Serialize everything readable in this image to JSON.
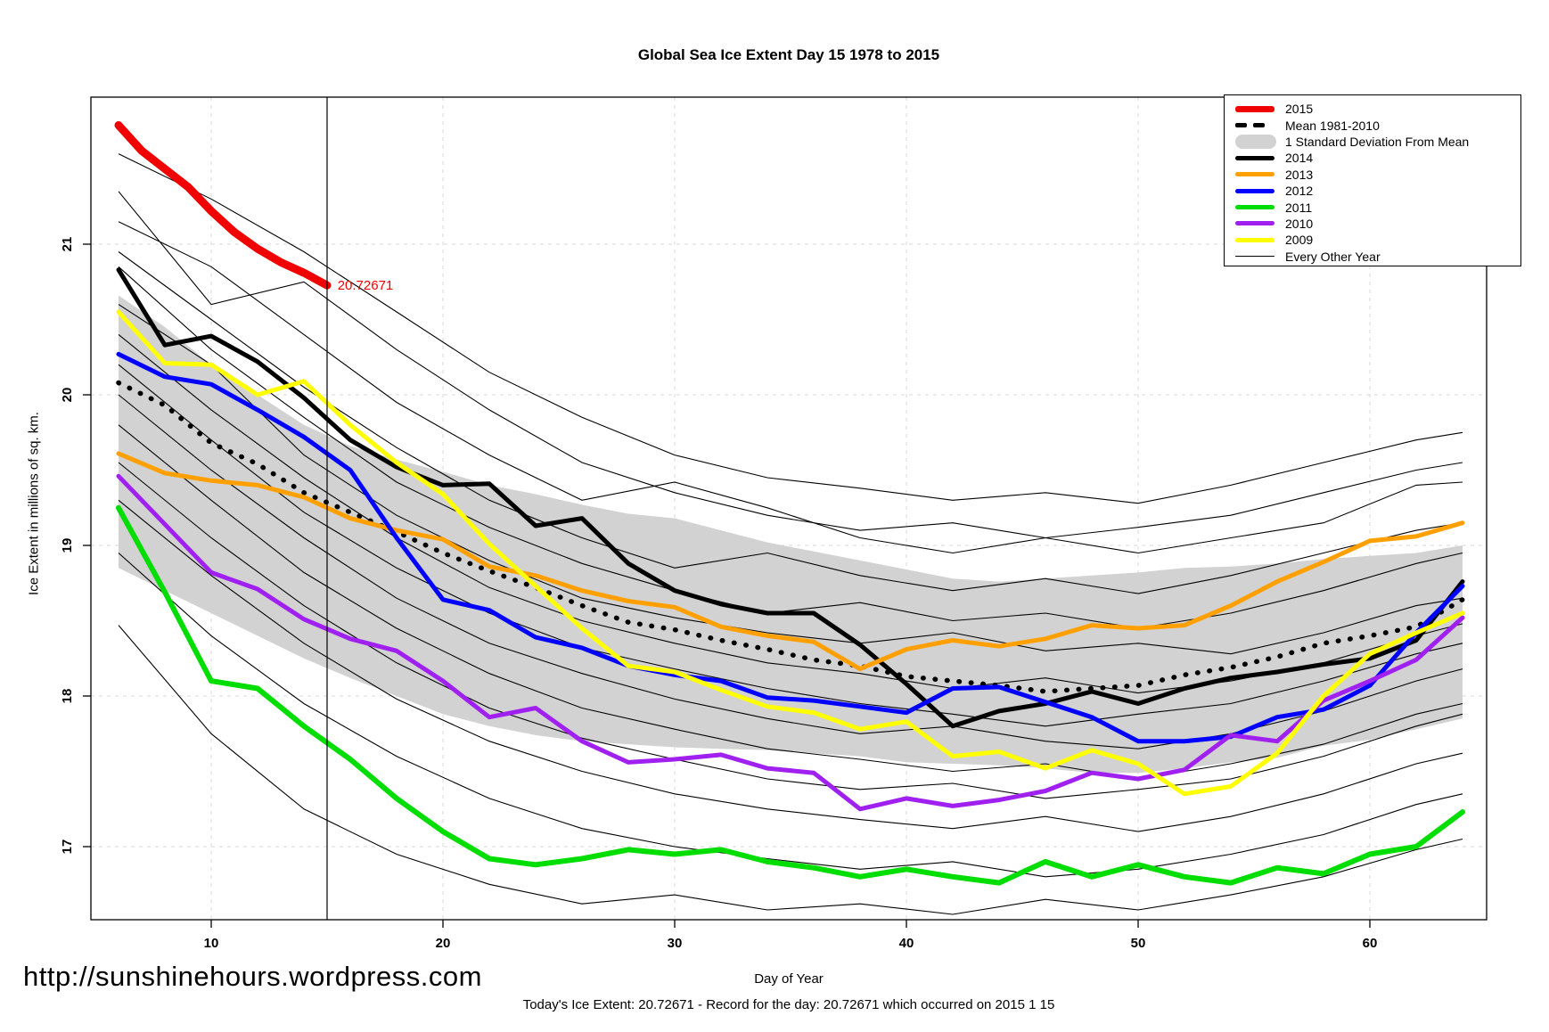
{
  "title": "Global Sea Ice Extent Day 15 1978 to 2015",
  "axes": {
    "x_label": "Day of Year",
    "y_label": "Ice Extent in millions of sq. km.",
    "x_ticks": [
      10,
      20,
      30,
      40,
      50,
      60
    ],
    "y_ticks": [
      17,
      18,
      19,
      20,
      21
    ]
  },
  "annotation": {
    "value_label": "20.72671",
    "color": "#F00000"
  },
  "footer": {
    "url": "http://sunshinehours.wordpress.com",
    "status": "Today's Ice Extent: 20.72671  - Record for the day: 20.72671 which occurred on 2015 1 15"
  },
  "legend": [
    {
      "label": "2015",
      "swatch": "line",
      "color": "#F00000",
      "weight": 7
    },
    {
      "label": "Mean 1981-2010",
      "swatch": "dashes",
      "color": "#000000",
      "weight": 5
    },
    {
      "label": "1 Standard Deviation From Mean",
      "swatch": "band",
      "color": "#D2D2D2",
      "weight": 16
    },
    {
      "label": "2014",
      "swatch": "line",
      "color": "#000000",
      "weight": 5
    },
    {
      "label": "2013",
      "swatch": "line",
      "color": "#FFA000",
      "weight": 5
    },
    {
      "label": "2012",
      "swatch": "line",
      "color": "#0000FF",
      "weight": 5
    },
    {
      "label": "2011",
      "swatch": "line",
      "color": "#00DD00",
      "weight": 5
    },
    {
      "label": "2010",
      "swatch": "line",
      "color": "#A020F0",
      "weight": 5
    },
    {
      "label": "2009",
      "swatch": "line",
      "color": "#FFFF00",
      "weight": 5
    },
    {
      "label": "Every Other Year",
      "swatch": "line",
      "color": "#000000",
      "weight": 1.5
    }
  ],
  "chart_data": {
    "type": "line",
    "title": "Global Sea Ice Extent Day 15 1978 to 2015",
    "xlabel": "Day of Year",
    "ylabel": "Ice Extent in millions of sq. km.",
    "xlim": [
      4.8,
      65
    ],
    "ylim": [
      16.5,
      21.98
    ],
    "x_ticks": [
      10,
      20,
      30,
      40,
      50,
      60
    ],
    "y_ticks": [
      17,
      18,
      19,
      20,
      21
    ],
    "grid": "dashed light gray at all ticks",
    "legend_position": "top-right",
    "marker_line_x": 15,
    "marker_annotation": {
      "x": 15.45,
      "y": 20.72671,
      "text": "20.72671"
    },
    "band": {
      "name": "1 Standard Deviation From Mean",
      "color": "#D2D2D2",
      "x": [
        6,
        8,
        10,
        12,
        14,
        16,
        18,
        20,
        22,
        24,
        26,
        28,
        30,
        32,
        34,
        36,
        38,
        40,
        42,
        44,
        46,
        48,
        50,
        52,
        54,
        56,
        58,
        60,
        62,
        64
      ],
      "top": [
        20.66,
        20.45,
        20.2,
        20.0,
        19.8,
        19.66,
        19.57,
        19.49,
        19.4,
        19.34,
        19.27,
        19.21,
        19.18,
        19.1,
        19.02,
        18.96,
        18.9,
        18.84,
        18.78,
        18.76,
        18.78,
        18.8,
        18.82,
        18.85,
        18.86,
        18.88,
        18.91,
        18.93,
        18.95,
        19.0
      ],
      "bottom": [
        18.85,
        18.7,
        18.55,
        18.4,
        18.25,
        18.12,
        18.0,
        17.88,
        17.8,
        17.74,
        17.7,
        17.68,
        17.66,
        17.65,
        17.64,
        17.62,
        17.6,
        17.56,
        17.55,
        17.54,
        17.52,
        17.49,
        17.49,
        17.52,
        17.56,
        17.59,
        17.67,
        17.71,
        17.78,
        17.85
      ]
    },
    "series": [
      {
        "name": "2015",
        "color": "#F00000",
        "width": 9,
        "x": [
          6,
          7,
          8,
          9,
          10,
          11,
          12,
          13,
          14,
          15
        ],
        "y": [
          21.79,
          21.62,
          21.5,
          21.38,
          21.22,
          21.08,
          20.97,
          20.88,
          20.81,
          20.72671
        ]
      },
      {
        "name": "Mean 1981-2010",
        "color": "#000000",
        "width": 5.5,
        "style": "dotted",
        "x": [
          6,
          8,
          10,
          12,
          14,
          16,
          18,
          20,
          22,
          24,
          26,
          28,
          30,
          32,
          34,
          36,
          38,
          40,
          42,
          44,
          46,
          48,
          50,
          52,
          54,
          56,
          58,
          60,
          62,
          64
        ],
        "y": [
          20.08,
          19.93,
          19.68,
          19.54,
          19.35,
          19.22,
          19.09,
          18.95,
          18.83,
          18.72,
          18.6,
          18.49,
          18.44,
          18.37,
          18.31,
          18.24,
          18.2,
          18.13,
          18.1,
          18.07,
          18.03,
          18.05,
          18.07,
          18.14,
          18.19,
          18.26,
          18.35,
          18.4,
          18.46,
          18.64
        ]
      },
      {
        "name": "2014",
        "color": "#000000",
        "width": 5,
        "x": [
          6,
          8,
          10,
          12,
          14,
          16,
          18,
          20,
          22,
          24,
          26,
          28,
          30,
          32,
          34,
          36,
          38,
          40,
          42,
          44,
          46,
          48,
          50,
          52,
          54,
          56,
          58,
          60,
          62,
          64
        ],
        "y": [
          20.83,
          20.33,
          20.39,
          20.22,
          19.98,
          19.7,
          19.52,
          19.4,
          19.41,
          19.13,
          19.18,
          18.88,
          18.7,
          18.61,
          18.55,
          18.55,
          18.34,
          18.08,
          17.8,
          17.9,
          17.95,
          18.03,
          17.95,
          18.05,
          18.12,
          18.16,
          18.21,
          18.25,
          18.37,
          18.76
        ]
      },
      {
        "name": "2013",
        "color": "#FFA000",
        "width": 5,
        "x": [
          6,
          8,
          10,
          12,
          14,
          16,
          18,
          20,
          22,
          24,
          26,
          28,
          30,
          32,
          34,
          36,
          38,
          40,
          42,
          44,
          46,
          48,
          50,
          52,
          54,
          56,
          58,
          60,
          62,
          64
        ],
        "y": [
          19.61,
          19.48,
          19.43,
          19.4,
          19.32,
          19.18,
          19.1,
          19.04,
          18.86,
          18.8,
          18.7,
          18.63,
          18.59,
          18.46,
          18.4,
          18.36,
          18.18,
          18.31,
          18.37,
          18.33,
          18.38,
          18.47,
          18.45,
          18.47,
          18.6,
          18.76,
          18.89,
          19.03,
          19.06,
          19.15
        ]
      },
      {
        "name": "2012",
        "color": "#0000FF",
        "width": 5,
        "x": [
          6,
          8,
          10,
          12,
          14,
          16,
          18,
          20,
          22,
          24,
          26,
          28,
          30,
          32,
          34,
          36,
          38,
          40,
          42,
          44,
          46,
          48,
          50,
          52,
          54,
          56,
          58,
          60,
          62,
          64
        ],
        "y": [
          20.27,
          20.12,
          20.07,
          19.9,
          19.72,
          19.5,
          19.05,
          18.64,
          18.57,
          18.39,
          18.32,
          18.2,
          18.14,
          18.1,
          17.99,
          17.97,
          17.93,
          17.89,
          18.05,
          18.06,
          17.96,
          17.86,
          17.7,
          17.7,
          17.73,
          17.86,
          17.91,
          18.07,
          18.42,
          18.73
        ]
      },
      {
        "name": "2011",
        "color": "#00DD00",
        "width": 6,
        "x": [
          6,
          8,
          10,
          12,
          14,
          16,
          18,
          20,
          22,
          24,
          26,
          28,
          30,
          32,
          34,
          36,
          38,
          40,
          42,
          44,
          46,
          48,
          50,
          52,
          54,
          56,
          58,
          60,
          62,
          64
        ],
        "y": [
          19.25,
          18.69,
          18.1,
          18.05,
          17.8,
          17.58,
          17.32,
          17.1,
          16.92,
          16.88,
          16.92,
          16.98,
          16.95,
          16.98,
          16.9,
          16.86,
          16.8,
          16.85,
          16.8,
          16.76,
          16.9,
          16.8,
          16.88,
          16.8,
          16.76,
          16.86,
          16.82,
          16.95,
          17.0,
          17.23
        ]
      },
      {
        "name": "2010",
        "color": "#A020F0",
        "width": 5,
        "x": [
          6,
          8,
          10,
          12,
          14,
          16,
          18,
          20,
          22,
          24,
          26,
          28,
          30,
          32,
          34,
          36,
          38,
          40,
          42,
          44,
          46,
          48,
          50,
          52,
          54,
          56,
          58,
          60,
          62,
          64
        ],
        "y": [
          19.46,
          19.14,
          18.82,
          18.71,
          18.51,
          18.38,
          18.3,
          18.1,
          17.86,
          17.92,
          17.7,
          17.56,
          17.58,
          17.61,
          17.52,
          17.49,
          17.25,
          17.32,
          17.27,
          17.31,
          17.37,
          17.49,
          17.45,
          17.51,
          17.74,
          17.7,
          17.97,
          18.1,
          18.24,
          18.52
        ]
      },
      {
        "name": "2009",
        "color": "#FFFF00",
        "width": 5,
        "x": [
          6,
          8,
          10,
          12,
          14,
          16,
          18,
          20,
          22,
          24,
          26,
          28,
          30,
          32,
          34,
          36,
          38,
          40,
          42,
          44,
          46,
          48,
          50,
          52,
          54,
          56,
          58,
          60,
          62,
          64
        ],
        "y": [
          20.55,
          20.21,
          20.2,
          20.0,
          20.09,
          19.8,
          19.55,
          19.34,
          19.01,
          18.73,
          18.45,
          18.2,
          18.16,
          18.04,
          17.93,
          17.89,
          17.78,
          17.83,
          17.6,
          17.63,
          17.52,
          17.64,
          17.55,
          17.35,
          17.4,
          17.62,
          18.0,
          18.28,
          18.42,
          18.55
        ]
      }
    ],
    "other_years": {
      "name": "Every Other Year",
      "color": "#000000",
      "width": 1.1,
      "x": [
        6,
        10,
        14,
        18,
        22,
        26,
        30,
        34,
        38,
        42,
        46,
        50,
        54,
        58,
        62,
        64
      ],
      "lines": [
        [
          21.6,
          21.3,
          20.95,
          20.55,
          20.15,
          19.85,
          19.6,
          19.45,
          19.38,
          19.3,
          19.35,
          19.28,
          19.4,
          19.55,
          19.7,
          19.75
        ],
        [
          21.35,
          20.6,
          20.75,
          20.3,
          19.9,
          19.55,
          19.35,
          19.2,
          19.1,
          19.15,
          19.05,
          19.12,
          19.2,
          19.35,
          19.5,
          19.55
        ],
        [
          21.15,
          20.85,
          20.4,
          19.95,
          19.6,
          19.3,
          19.42,
          19.25,
          19.05,
          18.95,
          19.05,
          18.95,
          19.05,
          19.15,
          19.4,
          19.42
        ],
        [
          20.95,
          20.5,
          20.05,
          19.65,
          19.3,
          19.05,
          18.85,
          18.95,
          18.8,
          18.7,
          18.78,
          18.68,
          18.8,
          18.95,
          19.1,
          19.15
        ],
        [
          20.85,
          20.3,
          19.85,
          19.42,
          19.12,
          18.88,
          18.7,
          18.55,
          18.62,
          18.5,
          18.55,
          18.45,
          18.55,
          18.7,
          18.88,
          18.95
        ],
        [
          20.6,
          20.2,
          19.6,
          19.2,
          18.9,
          18.65,
          18.52,
          18.42,
          18.35,
          18.42,
          18.3,
          18.35,
          18.28,
          18.42,
          18.6,
          18.65
        ],
        [
          20.4,
          19.9,
          19.45,
          19.05,
          18.72,
          18.5,
          18.35,
          18.22,
          18.15,
          18.05,
          18.12,
          18.02,
          18.1,
          18.22,
          18.4,
          18.48
        ],
        [
          20.2,
          19.7,
          19.22,
          18.85,
          18.55,
          18.32,
          18.18,
          18.05,
          17.95,
          17.88,
          17.8,
          17.88,
          17.95,
          18.1,
          18.28,
          18.35
        ],
        [
          20.0,
          19.5,
          19.05,
          18.65,
          18.35,
          18.15,
          17.98,
          17.85,
          17.75,
          17.8,
          17.7,
          17.65,
          17.75,
          17.9,
          18.1,
          18.18
        ],
        [
          19.8,
          19.3,
          18.82,
          18.45,
          18.15,
          17.92,
          17.78,
          17.65,
          17.58,
          17.5,
          17.55,
          17.45,
          17.55,
          17.68,
          17.88,
          17.95
        ],
        [
          19.55,
          19.05,
          18.6,
          18.22,
          17.92,
          17.72,
          17.58,
          17.45,
          17.38,
          17.42,
          17.32,
          17.38,
          17.45,
          17.6,
          17.8,
          17.88
        ],
        [
          19.3,
          18.8,
          18.35,
          17.98,
          17.7,
          17.5,
          17.35,
          17.25,
          17.18,
          17.12,
          17.2,
          17.1,
          17.2,
          17.35,
          17.55,
          17.62
        ],
        [
          18.95,
          18.4,
          17.95,
          17.6,
          17.32,
          17.12,
          17.0,
          16.92,
          16.85,
          16.9,
          16.8,
          16.85,
          16.95,
          17.08,
          17.28,
          17.35
        ],
        [
          18.47,
          17.75,
          17.25,
          16.95,
          16.75,
          16.62,
          16.68,
          16.58,
          16.62,
          16.55,
          16.65,
          16.58,
          16.68,
          16.8,
          16.98,
          17.05
        ]
      ]
    }
  }
}
